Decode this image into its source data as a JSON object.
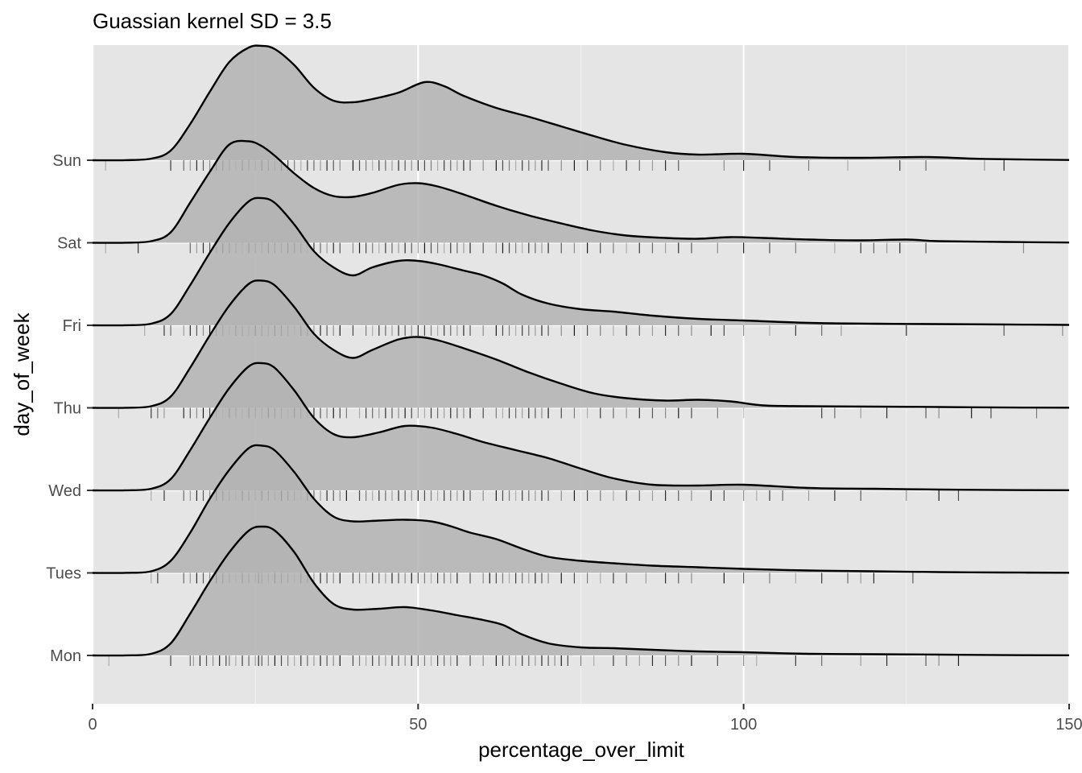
{
  "chart_data": {
    "type": "ridgeline",
    "title": "Guassian kernel SD = 3.5",
    "xlabel": "percentage_over_limit",
    "ylabel": "day_of_week",
    "xlim": [
      0,
      150
    ],
    "x_ticks": [
      0,
      50,
      100,
      150
    ],
    "x_tick_labels": [
      "0",
      "50",
      "100",
      "150"
    ],
    "categories": [
      "Mon",
      "Tues",
      "Wed",
      "Thu",
      "Fri",
      "Sat",
      "Sun"
    ],
    "grid": true,
    "legend": "none",
    "fill_color": "#b3b3b3",
    "panel_color": "#e5e5e5",
    "series": [
      {
        "name": "Mon",
        "x": [
          0,
          5,
          9,
          12,
          15,
          18,
          21,
          24,
          26,
          28,
          31,
          34,
          37,
          40,
          44,
          48,
          52,
          56,
          60,
          63,
          66,
          70,
          75,
          80,
          86,
          93,
          100,
          110,
          120,
          130,
          140,
          150
        ],
        "density": [
          0,
          0.001,
          0.02,
          0.15,
          0.52,
          0.92,
          1.28,
          1.55,
          1.6,
          1.55,
          1.28,
          0.9,
          0.64,
          0.57,
          0.58,
          0.6,
          0.56,
          0.5,
          0.44,
          0.38,
          0.26,
          0.15,
          0.1,
          0.09,
          0.07,
          0.05,
          0.04,
          0.02,
          0.015,
          0.01,
          0.004,
          0.002
        ],
        "rug": [
          2.5,
          12,
          15,
          15.5,
          16.5,
          17.5,
          18.5,
          19.5,
          20.5,
          21,
          22,
          23,
          24,
          25,
          25.5,
          26,
          27,
          28,
          29,
          30,
          31,
          32,
          33,
          34,
          35,
          36,
          37,
          38,
          40,
          41,
          42,
          43,
          44,
          45,
          46,
          47,
          48,
          49,
          50,
          51,
          52,
          53,
          54,
          55,
          56,
          58,
          60,
          62,
          63,
          64,
          65,
          66,
          67,
          68,
          69,
          70,
          71,
          72,
          73,
          75,
          77,
          80,
          82,
          84,
          86,
          88,
          90,
          92,
          96,
          100,
          102,
          108,
          112,
          118,
          122,
          128,
          130,
          133
        ]
      },
      {
        "name": "Tues",
        "x": [
          0,
          5,
          9,
          12,
          15,
          18,
          21,
          24,
          26,
          28,
          31,
          34,
          37,
          40,
          44,
          48,
          52,
          55,
          58,
          62,
          66,
          70,
          75,
          80,
          86,
          93,
          100,
          110,
          120,
          130,
          140,
          150
        ],
        "density": [
          0,
          0.001,
          0.02,
          0.15,
          0.5,
          0.92,
          1.28,
          1.55,
          1.58,
          1.52,
          1.25,
          0.92,
          0.7,
          0.64,
          0.65,
          0.66,
          0.64,
          0.58,
          0.5,
          0.42,
          0.3,
          0.2,
          0.15,
          0.12,
          0.09,
          0.07,
          0.05,
          0.03,
          0.02,
          0.01,
          0.005,
          0.002
        ],
        "rug": [
          9,
          10,
          14,
          15,
          16,
          17,
          18,
          19,
          20,
          21,
          22,
          23,
          24,
          25,
          25.5,
          26,
          27,
          28,
          29,
          30,
          31,
          32,
          33,
          34,
          35,
          36,
          37,
          38,
          40,
          41,
          42,
          43,
          44,
          45,
          46,
          47,
          48,
          49,
          50,
          51,
          52,
          53,
          54,
          55,
          56,
          58,
          60,
          61,
          62,
          63,
          64,
          65,
          66,
          67,
          68,
          69,
          70,
          72,
          74,
          76,
          78,
          80,
          82,
          85,
          88,
          90,
          92,
          97,
          100,
          104,
          108,
          112,
          116,
          118,
          120,
          126
        ]
      },
      {
        "name": "Wed",
        "x": [
          0,
          5,
          9,
          12,
          15,
          18,
          21,
          24,
          26,
          28,
          31,
          34,
          37,
          40,
          44,
          48,
          52,
          56,
          60,
          65,
          70,
          75,
          80,
          86,
          93,
          100,
          110,
          120,
          130,
          140,
          150
        ],
        "density": [
          0,
          0.001,
          0.02,
          0.14,
          0.5,
          0.9,
          1.27,
          1.54,
          1.58,
          1.52,
          1.24,
          0.9,
          0.7,
          0.66,
          0.72,
          0.8,
          0.78,
          0.7,
          0.6,
          0.5,
          0.4,
          0.27,
          0.15,
          0.07,
          0.06,
          0.07,
          0.03,
          0.02,
          0.01,
          0.004,
          0.002
        ],
        "rug": [
          9,
          11,
          14,
          15,
          16,
          17,
          18,
          19,
          20,
          21,
          22,
          23,
          24,
          25,
          26,
          27,
          28,
          29,
          30,
          31,
          32,
          33,
          34,
          35,
          36,
          37,
          38,
          39,
          41,
          42,
          43,
          44,
          45,
          46,
          47,
          48,
          49,
          50,
          51,
          52,
          53,
          54,
          55,
          56,
          57,
          58,
          60,
          62,
          63,
          64,
          65,
          66,
          67,
          68,
          69,
          70,
          72,
          74,
          76,
          78,
          80,
          82,
          84,
          86,
          88,
          90,
          92,
          95,
          97,
          100,
          102,
          104,
          106,
          110,
          114,
          118,
          125,
          130,
          133
        ]
      },
      {
        "name": "Thu",
        "x": [
          0,
          5,
          9,
          12,
          15,
          18,
          21,
          24,
          26,
          28,
          31,
          34,
          37,
          40,
          43,
          47,
          50,
          53,
          57,
          62,
          67,
          72,
          77,
          82,
          88,
          93,
          98,
          103,
          110,
          120,
          130,
          140,
          150
        ],
        "density": [
          0,
          0.001,
          0.02,
          0.14,
          0.5,
          0.9,
          1.27,
          1.54,
          1.58,
          1.52,
          1.25,
          0.92,
          0.72,
          0.62,
          0.72,
          0.85,
          0.88,
          0.84,
          0.74,
          0.6,
          0.44,
          0.3,
          0.18,
          0.12,
          0.09,
          0.1,
          0.08,
          0.03,
          0.02,
          0.015,
          0.01,
          0.004,
          0.002
        ],
        "rug": [
          4,
          9,
          10,
          11,
          14,
          15,
          16,
          17,
          18,
          19,
          20,
          21,
          22,
          23,
          24,
          25,
          26,
          27,
          28,
          29,
          30,
          31,
          32,
          33,
          34,
          35,
          36,
          37,
          38,
          39,
          41,
          42,
          43,
          44,
          45,
          46,
          47,
          48,
          49,
          50,
          51,
          52,
          53,
          54,
          55,
          56,
          57,
          58,
          60,
          62,
          63,
          64,
          65,
          66,
          67,
          68,
          69,
          70,
          72,
          74,
          76,
          78,
          80,
          82,
          84,
          86,
          88,
          90,
          92,
          96,
          100,
          112,
          114,
          118,
          122,
          128,
          130,
          135,
          138,
          145
        ]
      },
      {
        "name": "Fri",
        "x": [
          0,
          5,
          9,
          12,
          15,
          18,
          21,
          24,
          26,
          28,
          31,
          34,
          37,
          40,
          43,
          47,
          50,
          53,
          57,
          60,
          63,
          66,
          70,
          75,
          80,
          86,
          93,
          100,
          110,
          120,
          130,
          140,
          150
        ],
        "density": [
          0,
          0.001,
          0.02,
          0.14,
          0.5,
          0.9,
          1.27,
          1.54,
          1.58,
          1.52,
          1.25,
          0.92,
          0.72,
          0.62,
          0.72,
          0.8,
          0.8,
          0.76,
          0.68,
          0.62,
          0.52,
          0.38,
          0.27,
          0.2,
          0.17,
          0.12,
          0.08,
          0.06,
          0.03,
          0.02,
          0.015,
          0.01,
          0.005
        ],
        "rug": [
          8,
          11,
          12,
          14,
          15,
          16,
          17,
          18,
          19,
          20,
          21,
          22,
          23,
          24,
          25,
          26,
          27,
          28,
          29,
          30,
          31,
          32,
          33,
          34,
          35,
          36,
          37,
          38,
          40,
          42,
          43,
          44,
          45,
          46,
          47,
          48,
          49,
          50,
          51,
          52,
          53,
          54,
          55,
          56,
          57,
          58,
          60,
          62,
          63,
          64,
          65,
          66,
          67,
          68,
          69,
          70,
          72,
          74,
          76,
          78,
          80,
          82,
          84,
          86,
          88,
          90,
          92,
          95,
          97,
          100,
          104,
          108,
          112,
          115,
          125,
          140,
          149
        ]
      },
      {
        "name": "Sat",
        "x": [
          0,
          5,
          9,
          12,
          15,
          18,
          21,
          24,
          26,
          28,
          31,
          34,
          37,
          40,
          43,
          47,
          50,
          53,
          57,
          62,
          67,
          72,
          77,
          82,
          88,
          93,
          98,
          103,
          110,
          118,
          125,
          130,
          140,
          150
        ],
        "density": [
          0,
          0.001,
          0.02,
          0.13,
          0.5,
          0.88,
          1.22,
          1.26,
          1.2,
          1.08,
          0.86,
          0.68,
          0.58,
          0.57,
          0.62,
          0.72,
          0.74,
          0.7,
          0.6,
          0.46,
          0.34,
          0.24,
          0.15,
          0.09,
          0.06,
          0.05,
          0.07,
          0.06,
          0.04,
          0.03,
          0.04,
          0.02,
          0.01,
          0.003
        ],
        "rug": [
          2,
          7,
          15,
          16,
          17,
          18,
          19,
          20,
          21,
          22,
          23,
          24,
          25,
          26,
          27,
          28,
          29,
          30,
          31,
          32,
          33,
          34,
          35,
          36,
          37,
          38,
          40,
          41,
          42,
          43,
          44,
          45,
          46,
          47,
          48,
          49,
          50,
          51,
          52,
          53,
          54,
          55,
          56,
          57,
          58,
          60,
          62,
          63,
          64,
          65,
          66,
          67,
          68,
          69,
          70,
          72,
          74,
          76,
          78,
          80,
          82,
          84,
          86,
          88,
          90,
          92,
          96,
          100,
          104,
          108,
          114,
          118,
          120,
          122,
          124,
          128,
          143
        ]
      },
      {
        "name": "Sun",
        "x": [
          0,
          5,
          9,
          12,
          15,
          18,
          21,
          24,
          26,
          28,
          31,
          34,
          37,
          40,
          43,
          47,
          51,
          54,
          57,
          62,
          67,
          72,
          77,
          82,
          88,
          93,
          100,
          108,
          118,
          128,
          135,
          142,
          150
        ],
        "density": [
          0,
          0.001,
          0.02,
          0.12,
          0.45,
          0.85,
          1.22,
          1.4,
          1.42,
          1.38,
          1.18,
          0.9,
          0.74,
          0.72,
          0.76,
          0.84,
          0.97,
          0.92,
          0.8,
          0.65,
          0.54,
          0.42,
          0.3,
          0.19,
          0.1,
          0.07,
          0.08,
          0.04,
          0.03,
          0.04,
          0.02,
          0.01,
          0.003
        ],
        "rug": [
          2,
          12,
          14,
          15,
          16,
          17,
          18,
          19,
          20,
          21,
          22,
          23,
          24,
          25,
          26,
          27,
          28,
          29,
          30,
          31,
          32,
          33,
          34,
          35,
          36,
          37,
          38,
          40,
          41,
          42,
          43,
          44,
          45,
          46,
          47,
          48,
          49,
          50,
          51,
          52,
          53,
          54,
          55,
          56,
          57,
          58,
          60,
          62,
          63,
          64,
          65,
          66,
          67,
          68,
          69,
          70,
          72,
          74,
          76,
          78,
          80,
          82,
          84,
          86,
          88,
          90,
          97,
          100,
          104,
          110,
          116,
          124,
          128,
          137,
          140
        ]
      }
    ]
  }
}
